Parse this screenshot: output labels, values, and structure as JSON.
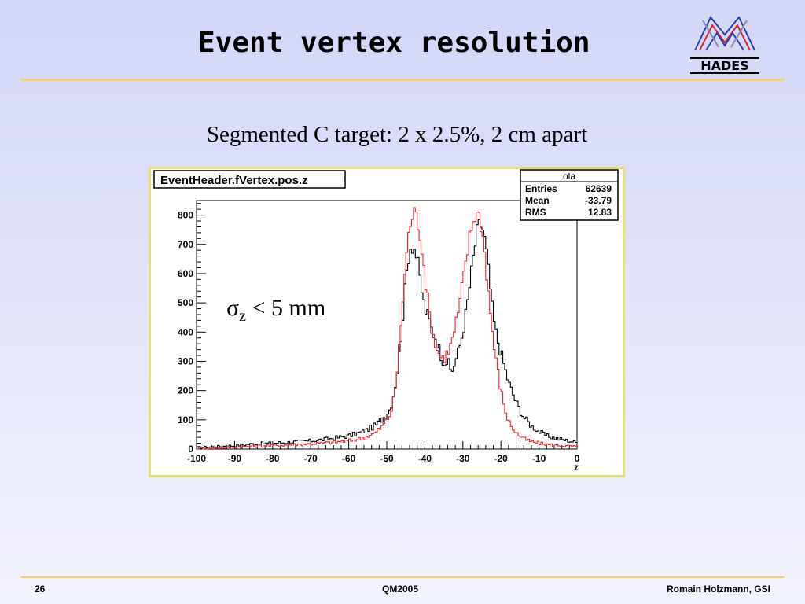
{
  "slide": {
    "title": "Event vertex resolution",
    "subtitle": "Segmented C target:  2 x 2.5%, 2 cm apart",
    "logo_text": "HADES",
    "footer": {
      "page": "26",
      "center": "QM2005",
      "author": "Romain Holzmann, GSI"
    }
  },
  "colors": {
    "accent": "#f4d36a",
    "series_black": "#000000",
    "series_red": "#e8262a",
    "frame": "#e8e07a"
  },
  "chart_data": {
    "type": "histogram",
    "title": "EventHeader.fVertex.pos.z",
    "xlabel": "z",
    "ylabel": "",
    "xlim": [
      -100,
      0
    ],
    "ylim": [
      0,
      850
    ],
    "x_ticks": [
      "-100",
      "-90",
      "-80",
      "-70",
      "-60",
      "-50",
      "-40",
      "-30",
      "-20",
      "-10",
      "0"
    ],
    "y_ticks": [
      "0",
      "100",
      "200",
      "300",
      "400",
      "500",
      "600",
      "700",
      "800"
    ],
    "annotation": {
      "symbol": "σ",
      "subscript": "z",
      "text": " < 5 mm"
    },
    "stats": {
      "name": "ola",
      "rows": [
        {
          "label": "Entries",
          "value": "62639"
        },
        {
          "label": "Mean",
          "value": "-33.79"
        },
        {
          "label": "RMS",
          "value": "12.83"
        }
      ]
    },
    "series": [
      {
        "name": "",
        "color": "#000000",
        "x": [
          -100,
          -95,
          -90,
          -85,
          -80,
          -75,
          -70,
          -65,
          -60,
          -56,
          -53,
          -51,
          -49,
          -48,
          -47,
          -46,
          -45,
          -44,
          -43,
          -42,
          -41,
          -40,
          -39,
          -38,
          -37,
          -36,
          -35,
          -34,
          -33,
          -32,
          -31,
          -30,
          -29,
          -28,
          -27,
          -26,
          -25,
          -24,
          -23,
          -22,
          -21,
          -20,
          -19,
          -18,
          -16,
          -14,
          -12,
          -10,
          -8,
          -5,
          -2,
          0
        ],
        "y": [
          5,
          8,
          12,
          18,
          20,
          24,
          28,
          35,
          45,
          60,
          80,
          105,
          140,
          200,
          290,
          420,
          580,
          690,
          700,
          650,
          560,
          480,
          450,
          400,
          380,
          330,
          300,
          300,
          260,
          300,
          340,
          400,
          480,
          580,
          680,
          760,
          770,
          700,
          580,
          450,
          380,
          330,
          280,
          230,
          160,
          110,
          80,
          60,
          45,
          35,
          28,
          22
        ]
      },
      {
        "name": "",
        "color": "#e8262a",
        "x": [
          -100,
          -95,
          -90,
          -85,
          -80,
          -75,
          -70,
          -65,
          -60,
          -56,
          -53,
          -51,
          -49,
          -48,
          -47,
          -46,
          -45,
          -44,
          -43,
          -42,
          -41,
          -40,
          -39,
          -38,
          -37,
          -36,
          -35,
          -34,
          -33,
          -32,
          -31,
          -30,
          -29,
          -28,
          -27,
          -26,
          -25,
          -24,
          -23,
          -22,
          -21,
          -20,
          -19,
          -18,
          -16,
          -14,
          -12,
          -10,
          -8,
          -5,
          -2,
          0
        ],
        "y": [
          2,
          4,
          6,
          10,
          12,
          15,
          18,
          22,
          28,
          38,
          55,
          80,
          120,
          180,
          300,
          470,
          640,
          760,
          810,
          790,
          720,
          600,
          480,
          400,
          350,
          320,
          310,
          330,
          360,
          420,
          480,
          570,
          660,
          740,
          800,
          810,
          760,
          640,
          500,
          370,
          280,
          200,
          140,
          95,
          55,
          35,
          25,
          20,
          16,
          12,
          10,
          8
        ]
      }
    ]
  }
}
